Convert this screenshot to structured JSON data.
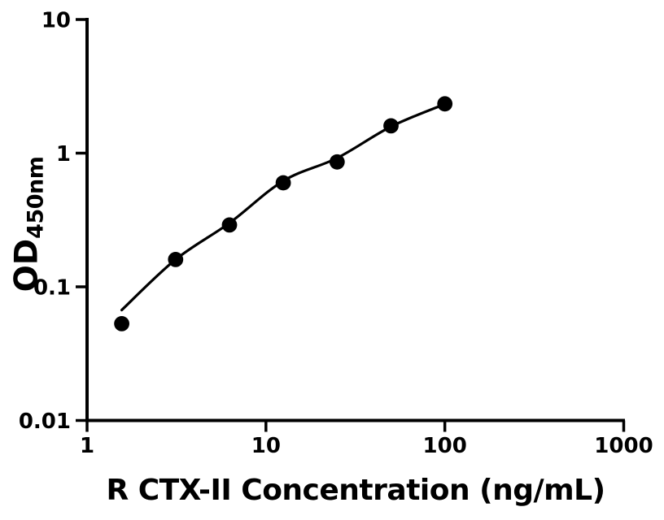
{
  "chart_data": {
    "type": "scatter",
    "title": "",
    "xlabel": "R CTX-II Concentration (ng/mL)",
    "ylabel_main": "OD",
    "ylabel_sub": "450nm",
    "x_scale": "log",
    "y_scale": "log",
    "xlim": [
      1,
      1000
    ],
    "ylim": [
      0.01,
      10
    ],
    "grid": false,
    "legend": false,
    "x_ticks": {
      "values": [
        1,
        10,
        100,
        1000
      ],
      "labels": [
        "1",
        "10",
        "100",
        "1000"
      ]
    },
    "y_ticks": {
      "values": [
        0.01,
        0.1,
        1,
        10
      ],
      "labels": [
        "0.01",
        "0.1",
        "1",
        "10"
      ]
    },
    "series": [
      {
        "name": "standard-points",
        "marker": "filled-circle",
        "color": "#000000",
        "x": [
          1.5625,
          3.125,
          6.25,
          12.5,
          25,
          50,
          100
        ],
        "y": [
          0.053,
          0.16,
          0.29,
          0.6,
          0.86,
          1.6,
          2.34
        ]
      }
    ],
    "fit_curve": {
      "name": "fitted-standard-curve",
      "color": "#000000",
      "points": [
        [
          1.5625,
          0.067
        ],
        [
          3.125,
          0.16
        ],
        [
          6.25,
          0.3
        ],
        [
          12.5,
          0.62
        ],
        [
          25,
          0.92
        ],
        [
          50,
          1.58
        ],
        [
          100,
          2.33
        ]
      ]
    },
    "colors": {
      "foreground": "#000000",
      "background": "#ffffff"
    }
  }
}
